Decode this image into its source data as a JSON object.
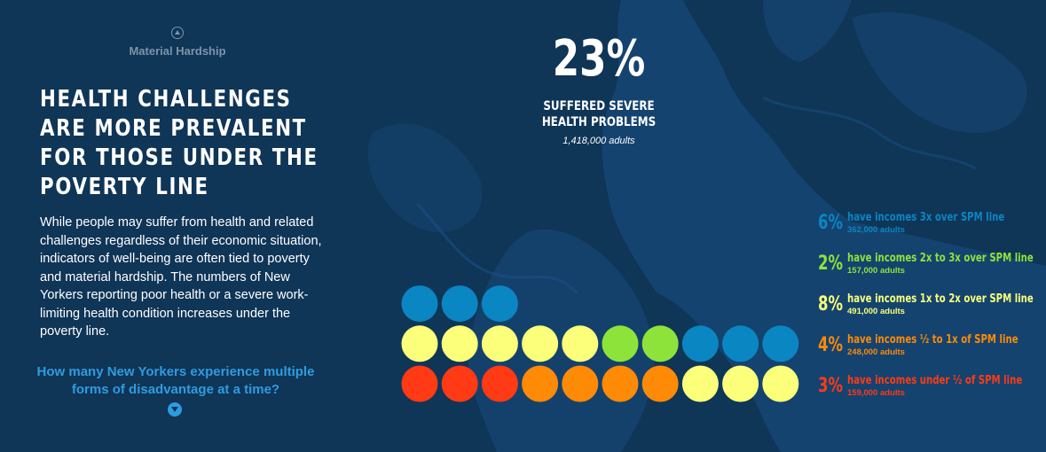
{
  "nav": {
    "up_label": "Material Hardship",
    "down_question": "How many New Yorkers experience multiple forms of disadvantage at a time?"
  },
  "headline": "Health challenges are more prevalent for those under the poverty line",
  "body": "While people may suffer from health and related challenges regardless of their economic situation, indicators of well-being are often tied to poverty and material hardship. The numbers of New Yorkers reporting poor health or a severe work-limiting health condition increases under the poverty line.",
  "highlight": {
    "percent": "23%",
    "caption": "Suffered severe health problems",
    "count": "1,418,000 adults"
  },
  "colors": {
    "background": "#0f3557",
    "map": "#1a4f85",
    "grid_dot": "#6f8aa3",
    "question": "#2e9ce0"
  },
  "chart_data": {
    "type": "dot-matrix",
    "title": "",
    "series": [
      {
        "percent": "3%",
        "label": "have incomes under ½ of SPM line",
        "count": "159,000 adults",
        "value": 3,
        "color": "#ff3a14"
      },
      {
        "percent": "4%",
        "label": "have incomes ½ to 1x of SPM line",
        "count": "248,000 adults",
        "value": 4,
        "color": "#ff8a05"
      },
      {
        "percent": "8%",
        "label": "have incomes 1x to 2x over SPM line",
        "count": "491,000 adults",
        "value": 8,
        "color": "#fbff7a"
      },
      {
        "percent": "2%",
        "label": "have incomes 2x to 3x over SPM line",
        "count": "157,000 adults",
        "value": 2,
        "color": "#8de33a"
      },
      {
        "percent": "6%",
        "label": "have incomes 3x over SPM line",
        "count": "362,000 adults",
        "value": 6,
        "color": "#0a86c2"
      }
    ],
    "total_percent": 23,
    "legend_order": [
      4,
      3,
      2,
      1,
      0
    ],
    "dot_grid": {
      "columns": 10,
      "rows": 10
    }
  }
}
